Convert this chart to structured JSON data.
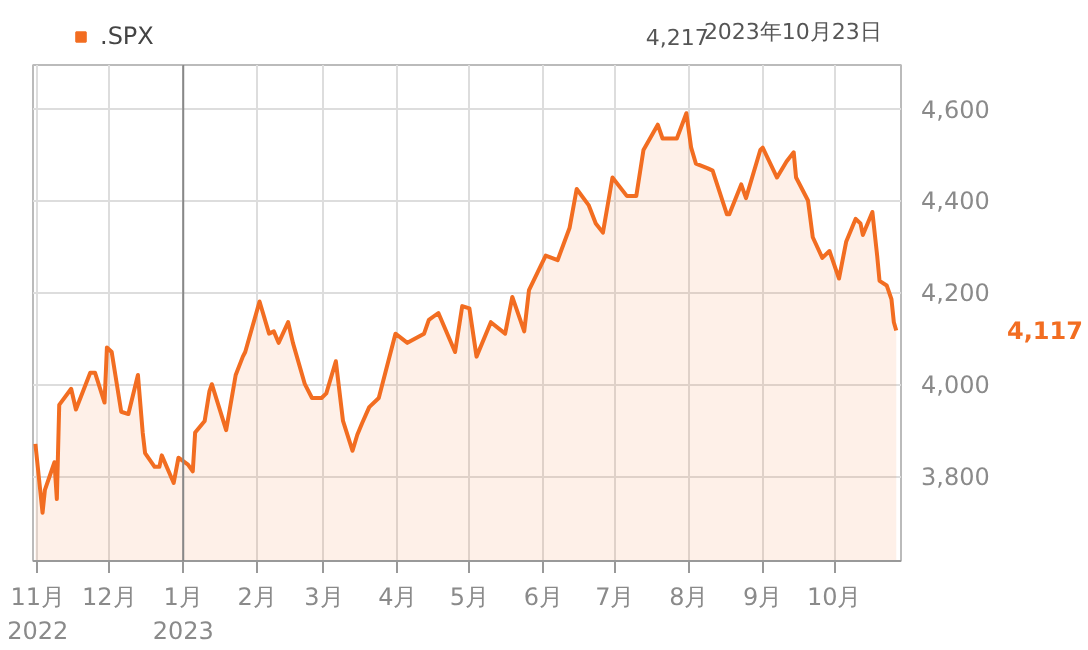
{
  "chart_data": {
    "type": "area",
    "legend": "top left",
    "grid": true,
    "series": [
      {
        "name": ".SPX",
        "color": "#f26d21",
        "x": [
          "2022-10-31",
          "2022-11-03",
          "2022-11-04",
          "2022-11-08",
          "2022-11-09",
          "2022-11-10",
          "2022-11-15",
          "2022-11-17",
          "2022-11-23",
          "2022-11-25",
          "2022-11-29",
          "2022-11-30",
          "2022-12-01",
          "2022-12-02",
          "2022-12-06",
          "2022-12-09",
          "2022-12-13",
          "2022-12-15",
          "2022-12-16",
          "2022-12-20",
          "2022-12-22",
          "2022-12-23",
          "2022-12-28",
          "2022-12-30",
          "2023-01-03",
          "2023-01-05",
          "2023-01-06",
          "2023-01-10",
          "2023-01-12",
          "2023-01-13",
          "2023-01-19",
          "2023-01-23",
          "2023-01-26",
          "2023-01-27",
          "2023-02-02",
          "2023-02-06",
          "2023-02-08",
          "2023-02-10",
          "2023-02-14",
          "2023-02-16",
          "2023-02-21",
          "2023-02-24",
          "2023-02-28",
          "2023-03-02",
          "2023-03-06",
          "2023-03-09",
          "2023-03-13",
          "2023-03-15",
          "2023-03-17",
          "2023-03-20",
          "2023-03-24",
          "2023-03-31",
          "2023-04-05",
          "2023-04-12",
          "2023-04-14",
          "2023-04-18",
          "2023-04-25",
          "2023-04-28",
          "2023-05-01",
          "2023-05-04",
          "2023-05-10",
          "2023-05-16",
          "2023-05-19",
          "2023-05-24",
          "2023-05-26",
          "2023-06-02",
          "2023-06-07",
          "2023-06-12",
          "2023-06-15",
          "2023-06-20",
          "2023-06-23",
          "2023-06-26",
          "2023-06-30",
          "2023-07-06",
          "2023-07-10",
          "2023-07-13",
          "2023-07-19",
          "2023-07-21",
          "2023-07-27",
          "2023-07-31",
          "2023-08-02",
          "2023-08-04",
          "2023-08-09",
          "2023-08-11",
          "2023-08-17",
          "2023-08-18",
          "2023-08-23",
          "2023-08-25",
          "2023-08-31",
          "2023-09-01",
          "2023-09-07",
          "2023-09-11",
          "2023-09-14",
          "2023-09-15",
          "2023-09-20",
          "2023-09-22",
          "2023-09-26",
          "2023-09-29",
          "2023-10-03",
          "2023-10-06",
          "2023-10-10",
          "2023-10-12",
          "2023-10-13",
          "2023-10-17",
          "2023-10-19",
          "2023-10-20",
          "2023-10-23",
          "2023-10-25",
          "2023-10-26",
          "2023-10-27"
        ],
        "values": [
          3870,
          3720,
          3770,
          3830,
          3750,
          3955,
          3990,
          3945,
          4025,
          4025,
          3960,
          4080,
          4075,
          4070,
          3940,
          3935,
          4020,
          3895,
          3850,
          3820,
          3820,
          3845,
          3785,
          3840,
          3825,
          3810,
          3895,
          3920,
          3985,
          4000,
          3900,
          4020,
          4060,
          4070,
          4180,
          4110,
          4115,
          4090,
          4135,
          4090,
          4000,
          3970,
          3970,
          3980,
          4050,
          3920,
          3855,
          3890,
          3915,
          3950,
          3970,
          4110,
          4090,
          4110,
          4140,
          4155,
          4070,
          4170,
          4165,
          4060,
          4135,
          4110,
          4190,
          4115,
          4205,
          4280,
          4270,
          4340,
          4425,
          4390,
          4350,
          4330,
          4450,
          4410,
          4410,
          4510,
          4565,
          4535,
          4535,
          4590,
          4515,
          4480,
          4470,
          4465,
          4370,
          4370,
          4435,
          4405,
          4510,
          4515,
          4450,
          4485,
          4505,
          4450,
          4400,
          4320,
          4275,
          4290,
          4230,
          4310,
          4360,
          4350,
          4325,
          4375,
          4280,
          4225,
          4215,
          4185,
          4135,
          4117
        ]
      }
    ],
    "xlim": [
      "2022-10-30",
      "2023-10-29"
    ],
    "xticks": [
      {
        "value": "2022-11-01",
        "label": "11月\n2022"
      },
      {
        "value": "2022-12-01",
        "label": "12月"
      },
      {
        "value": "2023-01-01",
        "label": "1月\n2023"
      },
      {
        "value": "2023-02-01",
        "label": "2月"
      },
      {
        "value": "2023-03-01",
        "label": "3月"
      },
      {
        "value": "2023-04-01",
        "label": "4月"
      },
      {
        "value": "2023-05-01",
        "label": "5月"
      },
      {
        "value": "2023-06-01",
        "label": "6月"
      },
      {
        "value": "2023-07-01",
        "label": "7月"
      },
      {
        "value": "2023-08-01",
        "label": "8月"
      },
      {
        "value": "2023-09-01",
        "label": "9月"
      },
      {
        "value": "2023-10-01",
        "label": "10月"
      }
    ],
    "ylim": [
      3615,
      4695
    ],
    "yticks": [
      {
        "value": 3800,
        "label": "3,800"
      },
      {
        "value": 4000,
        "label": "4,000"
      },
      {
        "value": 4200,
        "label": "4,200"
      },
      {
        "value": 4400,
        "label": "4,400"
      },
      {
        "value": 4600,
        "label": "4,600"
      }
    ],
    "ref_lines": [
      {
        "axis": "x",
        "value": "2023-01-01",
        "color": "#888888"
      }
    ],
    "annotations": [
      "4,217",
      "2023年10月23日",
      "4,117"
    ]
  }
}
